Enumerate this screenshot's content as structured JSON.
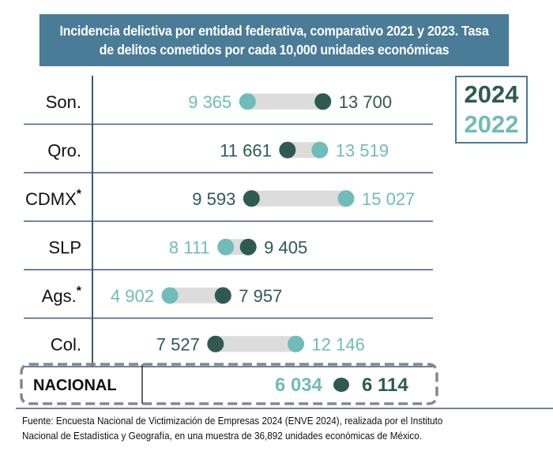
{
  "title_lines": [
    "Incidencia delictiva por entidad federativa, comparativo 2021 y 2023. Tasa",
    "de delitos cometidos por cada 10,000 unidades económicas"
  ],
  "legend": {
    "year_a": "2024",
    "year_b": "2022"
  },
  "colors": {
    "year_a": "#2f5a4f",
    "year_b": "#6fbcb8",
    "connector": "#dcdcdc",
    "header": "#4a7b97",
    "rule": "#3d5a7a"
  },
  "chart_data": {
    "type": "dumbbell",
    "title": "Incidencia delictiva por entidad federativa, comparativo 2021 y 2023. Tasa de delitos cometidos por cada 10,000 unidades económicas",
    "unit": "Delitos por cada 10,000 unidades económicas",
    "series_names": [
      "2024",
      "2022"
    ],
    "categories": [
      "Son.",
      "Qro.",
      "CDMX",
      "SLP",
      "Ags.",
      "Col."
    ],
    "category_marks": [
      "",
      "",
      "*",
      "",
      "*",
      ""
    ],
    "series": [
      {
        "name": "2024",
        "values": [
          13700,
          11661,
          9593,
          9405,
          7957,
          7527
        ],
        "labels": [
          "13 700",
          "11 661",
          "9 593",
          "9 405",
          "7 957",
          "7 527"
        ]
      },
      {
        "name": "2022",
        "values": [
          9365,
          13519,
          15027,
          8111,
          4902,
          12146
        ],
        "labels": [
          "9 365",
          "13 519",
          "15 027",
          "8 111",
          "4 902",
          "12 146"
        ]
      }
    ],
    "national": {
      "label": "NACIONAL",
      "value_2024": 6114,
      "label_2024": "6 114",
      "value_2022": 6034,
      "label_2022": "6 034"
    },
    "xlim": [
      4000,
      16000
    ]
  },
  "footer_lines": [
    "Fuente: Encuesta Nacional de Victimización de Empresas 2024 (ENVE 2024), realizada por el Instituto",
    "Nacional de Estadística y Geografía, en una muestra de 36,892 unidades económicas de México."
  ]
}
